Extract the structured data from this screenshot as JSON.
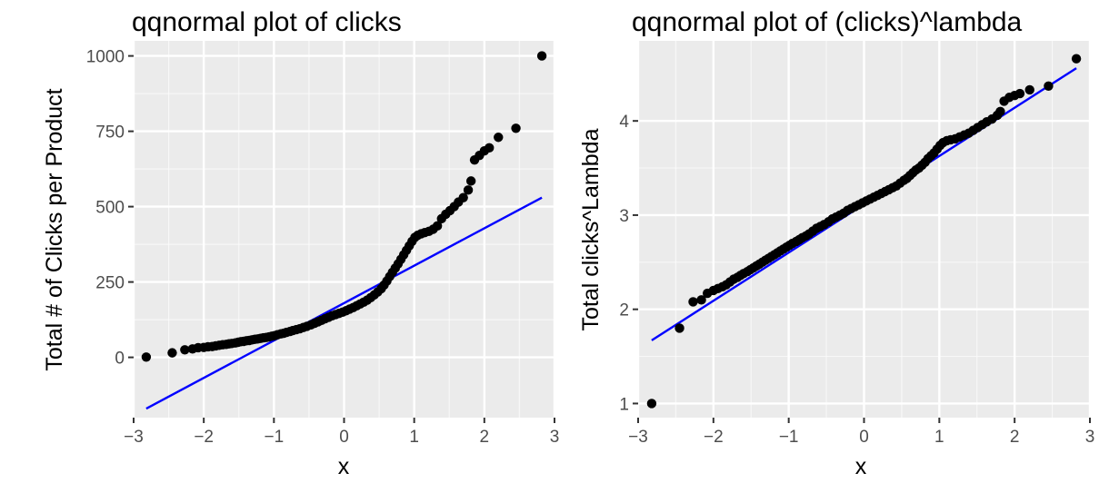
{
  "colors": {
    "panel_bg": "#ebebeb",
    "grid_major": "#ffffff",
    "points": "#000000",
    "reference_line": "#0000ff",
    "tick_text": "#4d4d4d",
    "tick_mark": "#333333"
  },
  "chart_data": [
    {
      "type": "scatter",
      "title": "qqnormal plot of clicks",
      "xlabel": "x",
      "ylabel": "Total # of Clicks per Product",
      "xlim": [
        -3,
        3
      ],
      "ylim": [
        -200,
        1050
      ],
      "x_ticks": [
        -3,
        -2,
        -1,
        0,
        1,
        2,
        3
      ],
      "x_tick_labels": [
        "−3",
        "−2",
        "−1",
        "0",
        "1",
        "2",
        "3"
      ],
      "y_ticks": [
        0,
        250,
        500,
        750,
        1000
      ],
      "y_tick_labels": [
        "0",
        "250",
        "500",
        "750",
        "1000"
      ],
      "grid": true,
      "reference_line": {
        "x": [
          -2.82,
          2.82
        ],
        "y": [
          -170,
          530
        ]
      },
      "points": [
        [
          -2.82,
          1
        ],
        [
          -2.45,
          15
        ],
        [
          -2.27,
          25
        ],
        [
          -2.16,
          28
        ],
        [
          -2.08,
          32
        ],
        [
          -2.0,
          33
        ],
        [
          -1.94,
          35
        ],
        [
          -1.88,
          36
        ],
        [
          -1.83,
          38
        ],
        [
          -1.78,
          40
        ],
        [
          -1.73,
          42
        ],
        [
          -1.68,
          43
        ],
        [
          -1.64,
          45
        ],
        [
          -1.6,
          46
        ],
        [
          -1.55,
          48
        ],
        [
          -1.51,
          50
        ],
        [
          -1.47,
          52
        ],
        [
          -1.43,
          53
        ],
        [
          -1.39,
          55
        ],
        [
          -1.35,
          56
        ],
        [
          -1.31,
          58
        ],
        [
          -1.27,
          60
        ],
        [
          -1.23,
          61
        ],
        [
          -1.19,
          63
        ],
        [
          -1.15,
          65
        ],
        [
          -1.11,
          66
        ],
        [
          -1.07,
          68
        ],
        [
          -1.03,
          70
        ],
        [
          -0.99,
          72
        ],
        [
          -0.95,
          75
        ],
        [
          -0.9,
          78
        ],
        [
          -0.86,
          80
        ],
        [
          -0.82,
          83
        ],
        [
          -0.77,
          86
        ],
        [
          -0.73,
          89
        ],
        [
          -0.68,
          92
        ],
        [
          -0.63,
          95
        ],
        [
          -0.58,
          99
        ],
        [
          -0.53,
          103
        ],
        [
          -0.47,
          108
        ],
        [
          -0.42,
          113
        ],
        [
          -0.37,
          118
        ],
        [
          -0.32,
          123
        ],
        [
          -0.27,
          128
        ],
        [
          -0.22,
          133
        ],
        [
          -0.17,
          138
        ],
        [
          -0.12,
          142
        ],
        [
          -0.07,
          146
        ],
        [
          -0.02,
          150
        ],
        [
          0.03,
          155
        ],
        [
          0.08,
          160
        ],
        [
          0.13,
          165
        ],
        [
          0.18,
          171
        ],
        [
          0.23,
          177
        ],
        [
          0.28,
          183
        ],
        [
          0.33,
          190
        ],
        [
          0.38,
          198
        ],
        [
          0.43,
          207
        ],
        [
          0.48,
          217
        ],
        [
          0.53,
          228
        ],
        [
          0.57,
          240
        ],
        [
          0.61,
          253
        ],
        [
          0.65,
          268
        ],
        [
          0.69,
          282
        ],
        [
          0.73,
          296
        ],
        [
          0.77,
          310
        ],
        [
          0.81,
          325
        ],
        [
          0.85,
          340
        ],
        [
          0.89,
          355
        ],
        [
          0.93,
          370
        ],
        [
          0.97,
          385
        ],
        [
          1.01,
          398
        ],
        [
          1.05,
          405
        ],
        [
          1.1,
          410
        ],
        [
          1.15,
          414
        ],
        [
          1.21,
          418
        ],
        [
          1.27,
          425
        ],
        [
          1.33,
          436
        ],
        [
          1.39,
          460
        ],
        [
          1.45,
          475
        ],
        [
          1.51,
          487
        ],
        [
          1.57,
          500
        ],
        [
          1.63,
          515
        ],
        [
          1.7,
          530
        ],
        [
          1.77,
          555
        ],
        [
          1.81,
          585
        ],
        [
          1.86,
          655
        ],
        [
          1.93,
          670
        ],
        [
          2.0,
          685
        ],
        [
          2.07,
          695
        ],
        [
          2.2,
          730
        ],
        [
          2.45,
          760
        ],
        [
          2.82,
          1000
        ]
      ]
    },
    {
      "type": "scatter",
      "title": "qqnormal plot of (clicks)^lambda",
      "xlabel": "x",
      "ylabel": "Total clicks^Lambda",
      "xlim": [
        -3,
        3
      ],
      "ylim": [
        0.85,
        4.85
      ],
      "x_ticks": [
        -3,
        -2,
        -1,
        0,
        1,
        2,
        3
      ],
      "x_tick_labels": [
        "−3",
        "−2",
        "−1",
        "0",
        "1",
        "2",
        "3"
      ],
      "y_ticks": [
        1,
        2,
        3,
        4
      ],
      "y_tick_labels": [
        "1",
        "2",
        "3",
        "4"
      ],
      "grid": true,
      "reference_line": {
        "x": [
          -2.82,
          2.82
        ],
        "y": [
          1.67,
          4.56
        ]
      },
      "points": [
        [
          -2.82,
          1.0
        ],
        [
          -2.45,
          1.8
        ],
        [
          -2.27,
          2.08
        ],
        [
          -2.16,
          2.1
        ],
        [
          -2.08,
          2.17
        ],
        [
          -2.0,
          2.2
        ],
        [
          -1.94,
          2.22
        ],
        [
          -1.88,
          2.24
        ],
        [
          -1.83,
          2.26
        ],
        [
          -1.78,
          2.29
        ],
        [
          -1.73,
          2.32
        ],
        [
          -1.68,
          2.34
        ],
        [
          -1.64,
          2.36
        ],
        [
          -1.6,
          2.38
        ],
        [
          -1.55,
          2.4
        ],
        [
          -1.51,
          2.42
        ],
        [
          -1.47,
          2.44
        ],
        [
          -1.43,
          2.46
        ],
        [
          -1.39,
          2.48
        ],
        [
          -1.35,
          2.5
        ],
        [
          -1.31,
          2.52
        ],
        [
          -1.27,
          2.54
        ],
        [
          -1.23,
          2.56
        ],
        [
          -1.19,
          2.58
        ],
        [
          -1.15,
          2.6
        ],
        [
          -1.11,
          2.62
        ],
        [
          -1.07,
          2.64
        ],
        [
          -1.03,
          2.66
        ],
        [
          -0.99,
          2.68
        ],
        [
          -0.95,
          2.7
        ],
        [
          -0.9,
          2.72
        ],
        [
          -0.86,
          2.74
        ],
        [
          -0.82,
          2.76
        ],
        [
          -0.77,
          2.78
        ],
        [
          -0.73,
          2.8
        ],
        [
          -0.68,
          2.83
        ],
        [
          -0.63,
          2.86
        ],
        [
          -0.58,
          2.88
        ],
        [
          -0.53,
          2.9
        ],
        [
          -0.47,
          2.93
        ],
        [
          -0.42,
          2.96
        ],
        [
          -0.37,
          2.98
        ],
        [
          -0.32,
          3.0
        ],
        [
          -0.27,
          3.02
        ],
        [
          -0.22,
          3.05
        ],
        [
          -0.17,
          3.07
        ],
        [
          -0.12,
          3.09
        ],
        [
          -0.07,
          3.11
        ],
        [
          -0.02,
          3.13
        ],
        [
          0.03,
          3.15
        ],
        [
          0.08,
          3.17
        ],
        [
          0.13,
          3.19
        ],
        [
          0.18,
          3.21
        ],
        [
          0.23,
          3.23
        ],
        [
          0.28,
          3.25
        ],
        [
          0.33,
          3.27
        ],
        [
          0.38,
          3.29
        ],
        [
          0.43,
          3.31
        ],
        [
          0.48,
          3.34
        ],
        [
          0.53,
          3.37
        ],
        [
          0.57,
          3.39
        ],
        [
          0.61,
          3.42
        ],
        [
          0.65,
          3.45
        ],
        [
          0.69,
          3.48
        ],
        [
          0.73,
          3.5
        ],
        [
          0.77,
          3.53
        ],
        [
          0.81,
          3.56
        ],
        [
          0.85,
          3.6
        ],
        [
          0.89,
          3.63
        ],
        [
          0.93,
          3.66
        ],
        [
          0.97,
          3.7
        ],
        [
          1.01,
          3.74
        ],
        [
          1.05,
          3.77
        ],
        [
          1.1,
          3.79
        ],
        [
          1.15,
          3.8
        ],
        [
          1.21,
          3.81
        ],
        [
          1.27,
          3.83
        ],
        [
          1.33,
          3.85
        ],
        [
          1.39,
          3.87
        ],
        [
          1.45,
          3.9
        ],
        [
          1.51,
          3.93
        ],
        [
          1.57,
          3.96
        ],
        [
          1.63,
          3.99
        ],
        [
          1.7,
          4.02
        ],
        [
          1.77,
          4.06
        ],
        [
          1.81,
          4.1
        ],
        [
          1.86,
          4.21
        ],
        [
          1.93,
          4.25
        ],
        [
          2.0,
          4.27
        ],
        [
          2.07,
          4.29
        ],
        [
          2.2,
          4.33
        ],
        [
          2.45,
          4.37
        ],
        [
          2.82,
          4.66
        ]
      ]
    }
  ]
}
